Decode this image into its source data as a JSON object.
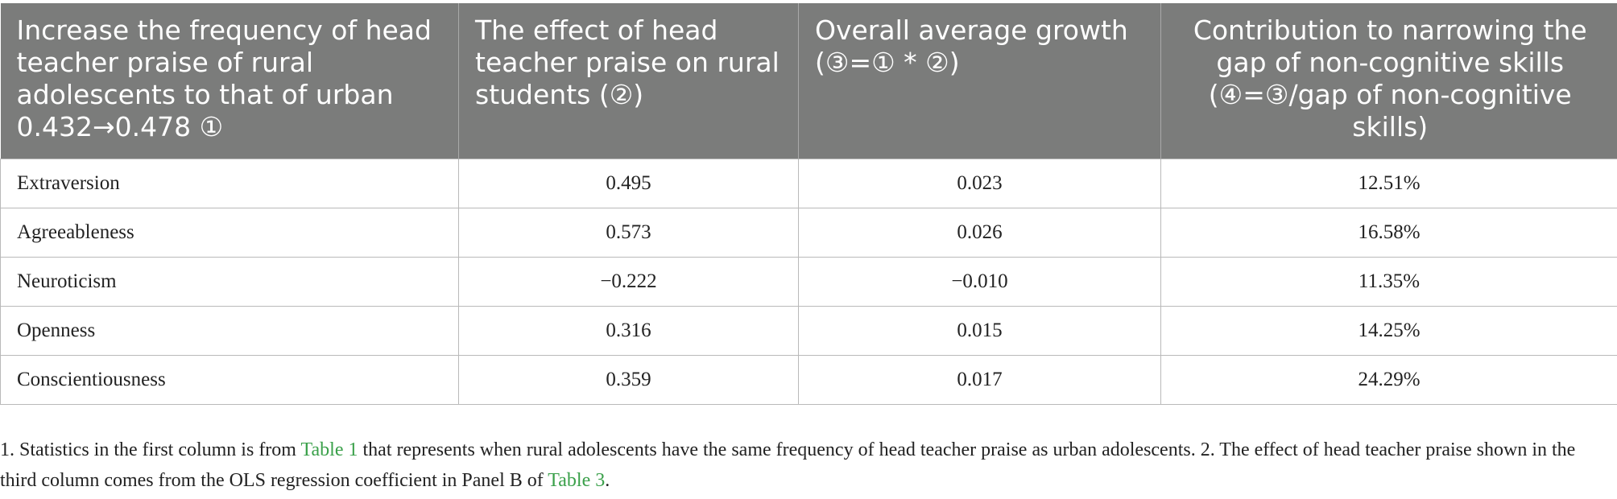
{
  "table": {
    "headers": [
      "Increase the frequency of head teacher praise of rural adolescents to that of urban 0.432→0.478 ①",
      "The effect of head teacher praise on rural students (②)",
      "Overall average growth (③=① * ②)",
      "Contribution to narrowing the gap of non-cognitive skills (④=③/gap of non-cognitive skills)"
    ],
    "rows": [
      {
        "label": "Extraversion",
        "effect": "0.495",
        "growth": "0.023",
        "contribution": "12.51%"
      },
      {
        "label": "Agreeableness",
        "effect": "0.573",
        "growth": "0.026",
        "contribution": "16.58%"
      },
      {
        "label": "Neuroticism",
        "effect": "−0.222",
        "growth": "−0.010",
        "contribution": "11.35%"
      },
      {
        "label": "Openness",
        "effect": "0.316",
        "growth": "0.015",
        "contribution": "14.25%"
      },
      {
        "label": "Conscientiousness",
        "effect": "0.359",
        "growth": "0.017",
        "contribution": "24.29%"
      }
    ]
  },
  "notes": {
    "part1": "1. Statistics in the first column is from ",
    "link1": "Table 1",
    "part2": " that represents when rural adolescents have the same frequency of head teacher praise as urban adolescents. 2. The effect of head teacher praise shown in the third column comes from the OLS regression coefficient in Panel B of ",
    "link2": "Table 3",
    "part3": ".",
    "link_color": "#3aa04a"
  },
  "colors": {
    "header_bg": "#7b7c7b",
    "header_text": "#ffffff",
    "body_text": "#222222",
    "grid": "#b9b9b9"
  }
}
